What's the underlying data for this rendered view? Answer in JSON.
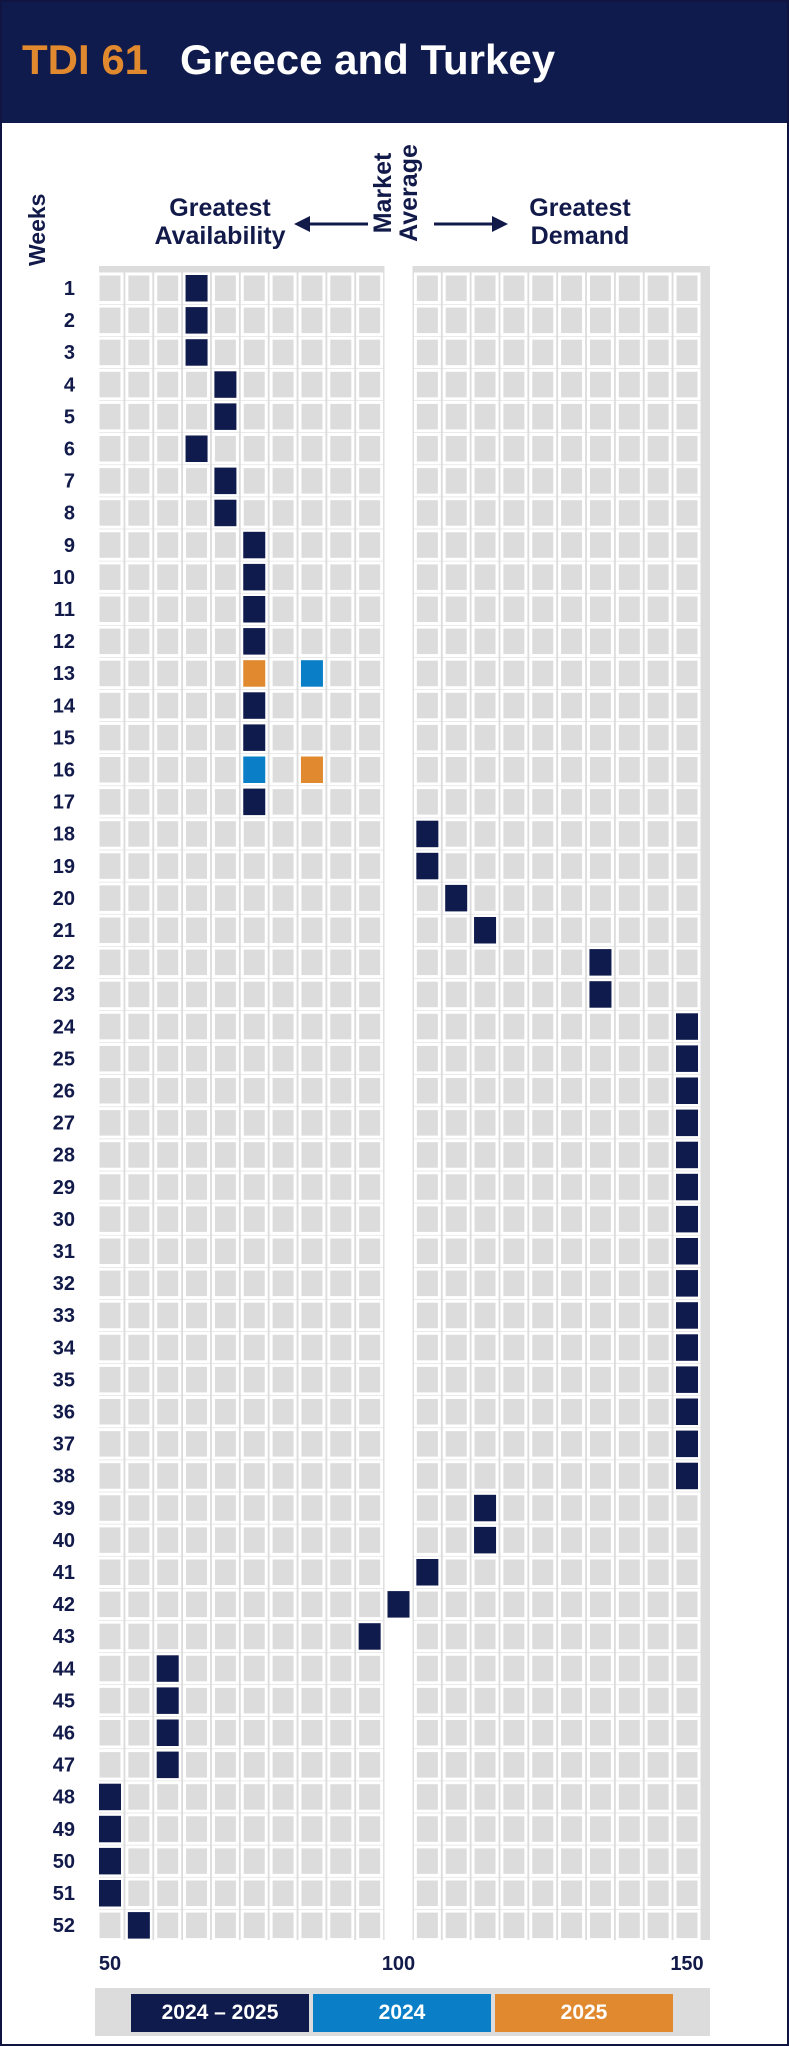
{
  "header": {
    "code": "TDI 61",
    "title": "Greece and Turkey"
  },
  "labels": {
    "left": "Greatest Availability",
    "left_line1": "Greatest",
    "left_line2": "Availability",
    "center_line1": "Market",
    "center_line2": "Average",
    "right_line1": "Greatest",
    "right_line2": "Demand",
    "weeks": "Weeks"
  },
  "colors": {
    "navy": "#0f1a4d",
    "blue": "#0a7fc8",
    "orange": "#e0892e",
    "cell": "#dcdcdc",
    "grid_bg": "#dcdcdc"
  },
  "legend": [
    {
      "label": "2024 – 2025",
      "color": "#0f1a4d"
    },
    {
      "label": "2024",
      "color": "#0a7fc8"
    },
    {
      "label": "2025",
      "color": "#e0892e"
    }
  ],
  "chart_data": {
    "type": "heatmap",
    "title": "Greece and Turkey",
    "xlabel": "",
    "ylabel": "Weeks",
    "x_ticks": [
      50,
      100,
      150
    ],
    "xlim": [
      50,
      150
    ],
    "market_average": 100,
    "weeks": [
      1,
      2,
      3,
      4,
      5,
      6,
      7,
      8,
      9,
      10,
      11,
      12,
      13,
      14,
      15,
      16,
      17,
      18,
      19,
      20,
      21,
      22,
      23,
      24,
      25,
      26,
      27,
      28,
      29,
      30,
      31,
      32,
      33,
      34,
      35,
      36,
      37,
      38,
      39,
      40,
      41,
      42,
      43,
      44,
      45,
      46,
      47,
      48,
      49,
      50,
      51,
      52
    ],
    "series": [
      {
        "name": "2024 – 2025",
        "values": [
          65,
          65,
          65,
          70,
          70,
          65,
          70,
          70,
          75,
          75,
          75,
          75,
          null,
          75,
          75,
          null,
          75,
          105,
          105,
          110,
          115,
          135,
          135,
          150,
          150,
          150,
          150,
          150,
          150,
          150,
          150,
          150,
          150,
          150,
          150,
          150,
          150,
          150,
          115,
          115,
          105,
          100,
          95,
          60,
          60,
          60,
          60,
          50,
          50,
          50,
          50,
          55
        ]
      },
      {
        "name": "2024",
        "values": [
          null,
          null,
          null,
          null,
          null,
          null,
          null,
          null,
          null,
          null,
          null,
          null,
          85,
          null,
          null,
          75,
          null,
          null,
          null,
          null,
          null,
          null,
          null,
          null,
          null,
          null,
          null,
          null,
          null,
          null,
          null,
          null,
          null,
          null,
          null,
          null,
          null,
          null,
          null,
          null,
          null,
          null,
          null,
          null,
          null,
          null,
          null,
          null,
          null,
          null,
          null,
          null
        ]
      },
      {
        "name": "2025",
        "values": [
          null,
          null,
          null,
          null,
          null,
          null,
          null,
          null,
          null,
          null,
          null,
          null,
          75,
          null,
          null,
          85,
          null,
          null,
          null,
          null,
          null,
          null,
          null,
          null,
          null,
          null,
          null,
          null,
          null,
          null,
          null,
          null,
          null,
          null,
          null,
          null,
          null,
          null,
          null,
          null,
          null,
          null,
          null,
          null,
          null,
          null,
          null,
          null,
          null,
          null,
          null,
          null
        ]
      }
    ]
  }
}
